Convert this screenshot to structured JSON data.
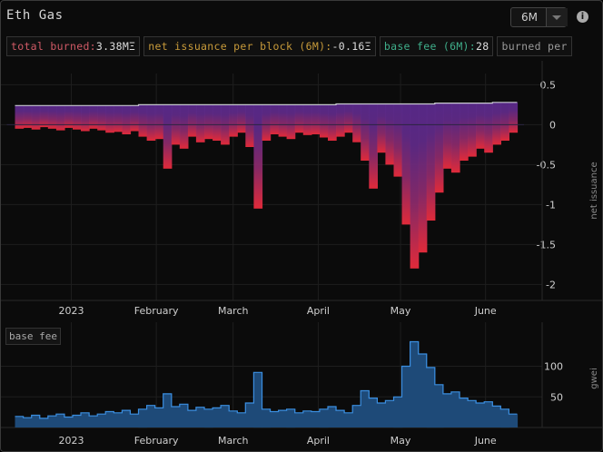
{
  "title": "Eth Gas",
  "range_select": {
    "value": "6M"
  },
  "info_icon": "i",
  "legend": {
    "total_burned": {
      "label": "total burned:",
      "value": "3.38MΞ"
    },
    "net_issuance": {
      "label": "net issuance per block (6M):",
      "value": "-0.16Ξ"
    },
    "base_fee": {
      "label": "base fee (6M):",
      "value": "28"
    },
    "burned_per": {
      "label": "burned per"
    }
  },
  "colors": {
    "issuance_top": "#5a2a8c",
    "issuance_neg_deep": "#e02a3a",
    "issuance_line": "#c8c8d0",
    "basefee_fill": "#1e4a78",
    "basefee_line": "#3b8ee0",
    "grid": "#1e1e1e"
  },
  "chart_data": [
    {
      "type": "area",
      "name": "net issuance",
      "ylabel": "net issuance",
      "ylim": [
        -2.2,
        0.55
      ],
      "yticks": [
        0.5,
        0,
        -0.5,
        -1,
        -1.5,
        -2
      ],
      "xticks": [
        {
          "label": "2023",
          "x": "2023-01-01"
        },
        {
          "label": "February",
          "x": "2023-02-01"
        },
        {
          "label": "March",
          "x": "2023-03-01"
        },
        {
          "label": "April",
          "x": "2023-04-01"
        },
        {
          "label": "May",
          "x": "2023-05-01"
        },
        {
          "label": "June",
          "x": "2023-06-01"
        }
      ],
      "x": [
        "2022-12-13",
        "2022-12-16",
        "2022-12-19",
        "2022-12-22",
        "2022-12-25",
        "2022-12-28",
        "2022-12-31",
        "2023-01-03",
        "2023-01-06",
        "2023-01-09",
        "2023-01-12",
        "2023-01-15",
        "2023-01-18",
        "2023-01-21",
        "2023-01-24",
        "2023-01-27",
        "2023-01-30",
        "2023-02-02",
        "2023-02-05",
        "2023-02-08",
        "2023-02-11",
        "2023-02-14",
        "2023-02-17",
        "2023-02-20",
        "2023-02-23",
        "2023-02-26",
        "2023-03-01",
        "2023-03-04",
        "2023-03-07",
        "2023-03-10",
        "2023-03-13",
        "2023-03-16",
        "2023-03-19",
        "2023-03-22",
        "2023-03-25",
        "2023-03-28",
        "2023-03-31",
        "2023-04-03",
        "2023-04-06",
        "2023-04-09",
        "2023-04-12",
        "2023-04-15",
        "2023-04-18",
        "2023-04-21",
        "2023-04-24",
        "2023-04-27",
        "2023-04-30",
        "2023-05-03",
        "2023-05-06",
        "2023-05-09",
        "2023-05-12",
        "2023-05-15",
        "2023-05-18",
        "2023-05-21",
        "2023-05-24",
        "2023-05-27",
        "2023-05-30",
        "2023-06-02",
        "2023-06-05",
        "2023-06-08",
        "2023-06-11"
      ],
      "series": [
        {
          "name": "net issuance",
          "values": [
            -0.05,
            -0.04,
            -0.06,
            -0.03,
            -0.05,
            -0.07,
            -0.04,
            -0.06,
            -0.08,
            -0.05,
            -0.07,
            -0.1,
            -0.09,
            -0.12,
            -0.08,
            -0.15,
            -0.2,
            -0.18,
            -0.55,
            -0.25,
            -0.3,
            -0.15,
            -0.22,
            -0.18,
            -0.2,
            -0.25,
            -0.15,
            -0.1,
            -0.28,
            -1.05,
            -0.2,
            -0.12,
            -0.15,
            -0.18,
            -0.1,
            -0.13,
            -0.12,
            -0.16,
            -0.2,
            -0.15,
            -0.1,
            -0.22,
            -0.45,
            -0.8,
            -0.35,
            -0.5,
            -0.65,
            -1.25,
            -1.8,
            -1.6,
            -1.2,
            -0.85,
            -0.55,
            -0.6,
            -0.45,
            -0.4,
            -0.3,
            -0.35,
            -0.25,
            -0.2,
            -0.1
          ]
        },
        {
          "name": "issuance",
          "values": [
            0.24,
            0.24,
            0.24,
            0.24,
            0.24,
            0.24,
            0.24,
            0.24,
            0.24,
            0.24,
            0.24,
            0.24,
            0.24,
            0.24,
            0.24,
            0.25,
            0.25,
            0.25,
            0.25,
            0.25,
            0.25,
            0.25,
            0.25,
            0.25,
            0.25,
            0.25,
            0.25,
            0.25,
            0.25,
            0.25,
            0.25,
            0.25,
            0.25,
            0.25,
            0.25,
            0.25,
            0.25,
            0.25,
            0.25,
            0.26,
            0.26,
            0.26,
            0.26,
            0.26,
            0.26,
            0.26,
            0.26,
            0.26,
            0.26,
            0.26,
            0.26,
            0.27,
            0.27,
            0.27,
            0.27,
            0.27,
            0.27,
            0.27,
            0.28,
            0.28,
            0.28
          ]
        }
      ]
    },
    {
      "type": "area",
      "name": "base fee",
      "ylabel": "gwei",
      "ylim": [
        0,
        160
      ],
      "yticks": [
        100,
        50
      ],
      "xticks": [
        {
          "label": "2023",
          "x": "2023-01-01"
        },
        {
          "label": "February",
          "x": "2023-02-01"
        },
        {
          "label": "March",
          "x": "2023-03-01"
        },
        {
          "label": "April",
          "x": "2023-04-01"
        },
        {
          "label": "May",
          "x": "2023-05-01"
        },
        {
          "label": "June",
          "x": "2023-06-01"
        }
      ],
      "x": [
        "2022-12-13",
        "2022-12-16",
        "2022-12-19",
        "2022-12-22",
        "2022-12-25",
        "2022-12-28",
        "2022-12-31",
        "2023-01-03",
        "2023-01-06",
        "2023-01-09",
        "2023-01-12",
        "2023-01-15",
        "2023-01-18",
        "2023-01-21",
        "2023-01-24",
        "2023-01-27",
        "2023-01-30",
        "2023-02-02",
        "2023-02-05",
        "2023-02-08",
        "2023-02-11",
        "2023-02-14",
        "2023-02-17",
        "2023-02-20",
        "2023-02-23",
        "2023-02-26",
        "2023-03-01",
        "2023-03-04",
        "2023-03-07",
        "2023-03-10",
        "2023-03-13",
        "2023-03-16",
        "2023-03-19",
        "2023-03-22",
        "2023-03-25",
        "2023-03-28",
        "2023-03-31",
        "2023-04-03",
        "2023-04-06",
        "2023-04-09",
        "2023-04-12",
        "2023-04-15",
        "2023-04-18",
        "2023-04-21",
        "2023-04-24",
        "2023-04-27",
        "2023-04-30",
        "2023-05-03",
        "2023-05-06",
        "2023-05-09",
        "2023-05-12",
        "2023-05-15",
        "2023-05-18",
        "2023-05-21",
        "2023-05-24",
        "2023-05-27",
        "2023-05-30",
        "2023-06-02",
        "2023-06-05",
        "2023-06-08",
        "2023-06-11"
      ],
      "series": [
        {
          "name": "base fee",
          "values": [
            18,
            16,
            20,
            15,
            19,
            22,
            17,
            20,
            24,
            19,
            22,
            26,
            24,
            28,
            22,
            30,
            36,
            32,
            55,
            34,
            38,
            28,
            33,
            30,
            32,
            36,
            27,
            24,
            40,
            90,
            30,
            26,
            28,
            30,
            24,
            27,
            26,
            30,
            34,
            28,
            24,
            36,
            60,
            48,
            40,
            44,
            50,
            100,
            140,
            120,
            98,
            70,
            55,
            58,
            48,
            44,
            40,
            42,
            35,
            30,
            22
          ]
        }
      ]
    }
  ]
}
